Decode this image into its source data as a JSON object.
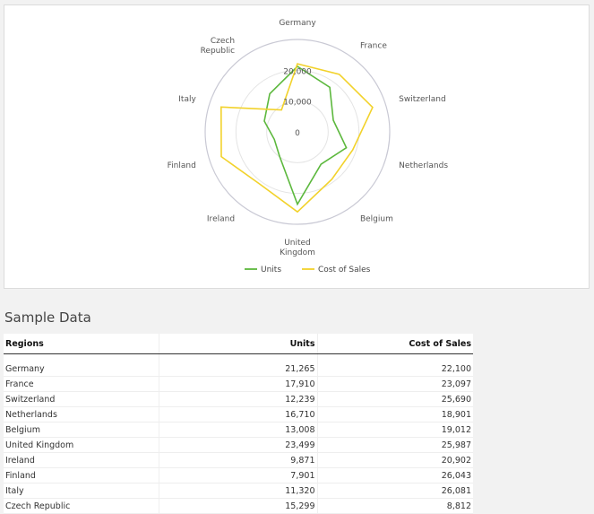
{
  "colors": {
    "units": "#5cb83d",
    "cost": "#f2d22b",
    "grid": "#d9d9d9",
    "label": "#555555"
  },
  "chart_data": {
    "type": "radar",
    "title": "",
    "categories": [
      "Germany",
      "France",
      "Switzerland",
      "Netherlands",
      "Belgium",
      "United Kingdom",
      "Ireland",
      "Finland",
      "Italy",
      "Czech Republic"
    ],
    "category_labels": [
      [
        "Germany"
      ],
      [
        "France"
      ],
      [
        "Switzerland"
      ],
      [
        "Netherlands"
      ],
      [
        "Belgium"
      ],
      [
        "United",
        "Kingdom"
      ],
      [
        "Ireland"
      ],
      [
        "Finland"
      ],
      [
        "Italy"
      ],
      [
        "Czech",
        "Republic"
      ]
    ],
    "series": [
      {
        "name": "Units",
        "color": "#5cb83d",
        "values": [
          21265,
          17910,
          12239,
          16710,
          13008,
          23499,
          9871,
          7901,
          11320,
          15299
        ]
      },
      {
        "name": "Cost of Sales",
        "color": "#f2d22b",
        "values": [
          22100,
          23097,
          25690,
          18901,
          19012,
          25987,
          20902,
          26043,
          26081,
          8812
        ]
      }
    ],
    "rlim": [
      0,
      30000
    ],
    "ticks": [
      0,
      10000,
      20000
    ],
    "tick_labels": [
      "0",
      "10,000",
      "20,000"
    ],
    "legend_position": "bottom"
  },
  "table": {
    "title": "Sample Data",
    "headers": [
      "Regions",
      "Units",
      "Cost of Sales"
    ],
    "rows": [
      [
        "Germany",
        "21,265",
        "22,100"
      ],
      [
        "France",
        "17,910",
        "23,097"
      ],
      [
        "Switzerland",
        "12,239",
        "25,690"
      ],
      [
        "Netherlands",
        "16,710",
        "18,901"
      ],
      [
        "Belgium",
        "13,008",
        "19,012"
      ],
      [
        "United Kingdom",
        "23,499",
        "25,987"
      ],
      [
        "Ireland",
        "9,871",
        "20,902"
      ],
      [
        "Finland",
        "7,901",
        "26,043"
      ],
      [
        "Italy",
        "11,320",
        "26,081"
      ],
      [
        "Czech Republic",
        "15,299",
        "8,812"
      ]
    ]
  }
}
